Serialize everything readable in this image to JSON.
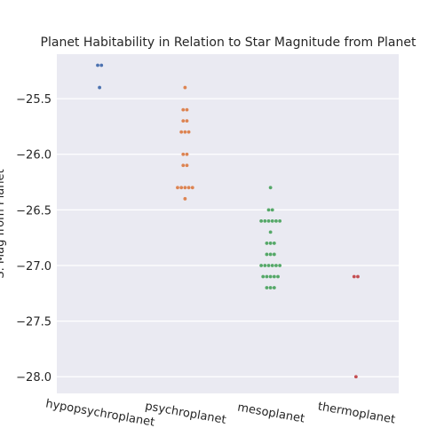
{
  "chart_data": {
    "type": "scatter",
    "subtype": "swarm",
    "title": "Planet Habitability in Relation to Star Magnitude from Planet",
    "xlabel": "",
    "ylabel": "S. Mag from Planet",
    "categories": [
      "hypopsychroplanet",
      "psychroplanet",
      "mesoplanet",
      "thermoplanet"
    ],
    "ylim": [
      -28.15,
      -25.1
    ],
    "yticks": [
      -25.5,
      -26.0,
      -26.5,
      -27.0,
      -27.5,
      -28.0
    ],
    "ytick_labels": [
      "−25.5",
      "−26.0",
      "−26.5",
      "−27.0",
      "−27.5",
      "−28.0"
    ],
    "grid": true,
    "background": "#eaeaf2",
    "series": [
      {
        "category": "hypopsychroplanet",
        "color": "#4c72b0",
        "values": [
          -25.2,
          -25.2,
          -25.4
        ]
      },
      {
        "category": "psychroplanet",
        "color": "#dd8452",
        "values": [
          -25.4,
          -25.6,
          -25.6,
          -25.7,
          -25.7,
          -25.8,
          -25.8,
          -25.8,
          -26.0,
          -26.0,
          -26.1,
          -26.1,
          -26.3,
          -26.3,
          -26.3,
          -26.3,
          -26.3,
          -26.4
        ]
      },
      {
        "category": "mesoplanet",
        "color": "#55a868",
        "values": [
          -26.3,
          -26.5,
          -26.5,
          -26.6,
          -26.6,
          -26.6,
          -26.6,
          -26.6,
          -26.6,
          -26.7,
          -26.8,
          -26.8,
          -26.8,
          -26.9,
          -26.9,
          -26.9,
          -27.0,
          -27.0,
          -27.0,
          -27.0,
          -27.0,
          -27.0,
          -27.1,
          -27.1,
          -27.1,
          -27.1,
          -27.1,
          -27.2,
          -27.2,
          -27.2
        ]
      },
      {
        "category": "thermoplanet",
        "color": "#c44e52",
        "values": [
          -27.1,
          -27.1,
          -28.0
        ]
      }
    ]
  }
}
